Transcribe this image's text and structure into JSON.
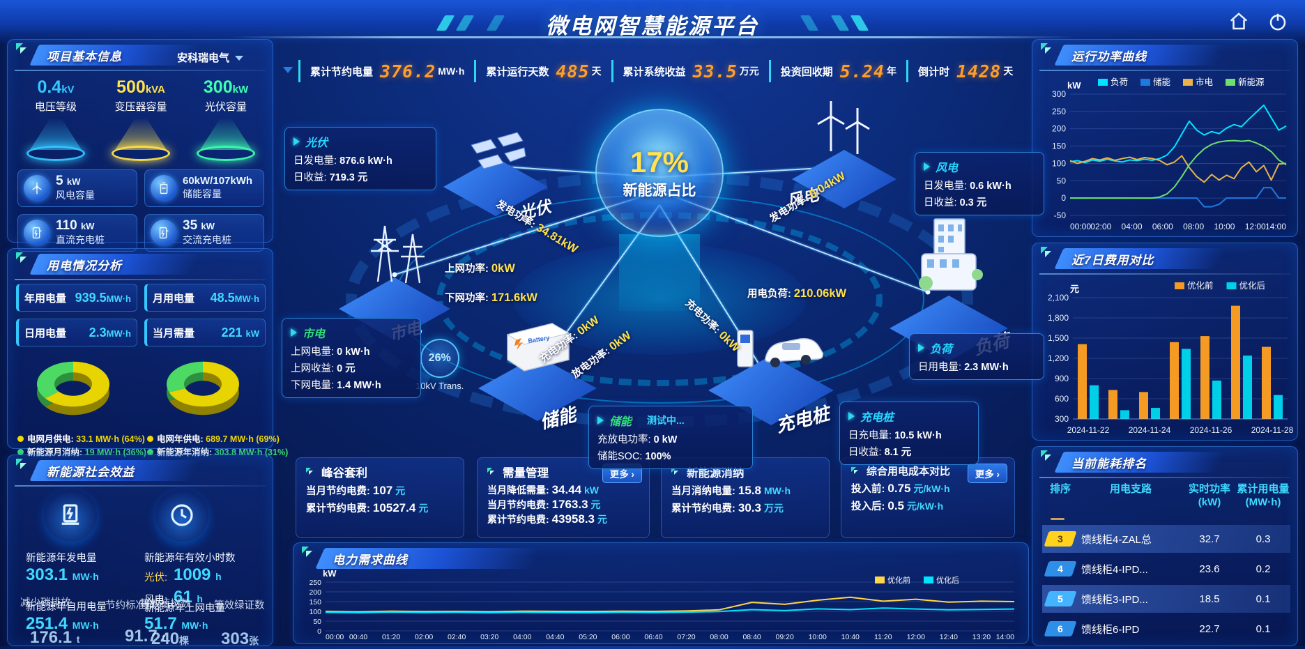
{
  "header": {
    "title": "微电网智慧能源平台"
  },
  "stats_bar": [
    {
      "label": "累计节约电量",
      "value": "376.2",
      "unit": "MW·h"
    },
    {
      "label": "累计运行天数",
      "value": "485",
      "unit": "天"
    },
    {
      "label": "累计系统收益",
      "value": "33.5",
      "unit": "万元"
    },
    {
      "label": "投资回收期",
      "value": "5.24",
      "unit": "年"
    },
    {
      "label": "倒计时",
      "value": "1428",
      "unit": "天"
    }
  ],
  "project_info": {
    "title": "项目基本信息",
    "company": "安科瑞电气",
    "cones": [
      {
        "value": "0.4",
        "unit": "kV",
        "label": "电压等级",
        "color": "#35c8ff"
      },
      {
        "value": "500",
        "unit": "kVA",
        "label": "变压器容量",
        "color": "#ffe24d"
      },
      {
        "value": "300",
        "unit": "kW",
        "label": "光伏容量",
        "color": "#3fffb0"
      }
    ],
    "cards": [
      {
        "value": "5",
        "unit": "kW",
        "label": "风电容量"
      },
      {
        "value": "60kW/107kWh",
        "unit": "",
        "label": "储能容量"
      },
      {
        "value": "110",
        "unit": "kW",
        "label": "直流充电桩"
      },
      {
        "value": "35",
        "unit": "kW",
        "label": "交流充电桩"
      }
    ]
  },
  "power_analysis": {
    "title": "用电情况分析",
    "metrics": [
      {
        "label": "年用电量",
        "value": "939.5",
        "unit": "MW·h"
      },
      {
        "label": "月用电量",
        "value": "48.5",
        "unit": "MW·h"
      },
      {
        "label": "日用电量",
        "value": "2.3",
        "unit": "MW·h"
      },
      {
        "label": "当月需量",
        "value": "221",
        "unit": "kW"
      }
    ],
    "donut_month_legend": [
      {
        "label": "电网月供电:",
        "value": "33.1 MW·h (64%)",
        "color": "#f0d800"
      },
      {
        "label": "新能源月消纳:",
        "value": "19 MW·h (36%)",
        "color": "#3ce06e"
      }
    ],
    "donut_year_legend": [
      {
        "label": "电网年供电:",
        "value": "689.7 MW·h (69%)",
        "color": "#f0d800"
      },
      {
        "label": "新能源年消纳:",
        "value": "303.8 MW·h (31%)",
        "color": "#3ce06e"
      }
    ]
  },
  "social_benefit": {
    "title": "新能源社会效益",
    "gen_label": "新能源年发电量",
    "gen_value": "303.1",
    "gen_unit": "MW·h",
    "hours_label": "新能源年有效小时数",
    "pv_label": "光伏:",
    "pv_value": "1009",
    "pv_unit": "h",
    "wind_label": "风电:",
    "wind_value": "61",
    "wind_unit": "h",
    "self_label": "新能源年自用电量",
    "self_value": "251.4",
    "self_unit": "MW·h",
    "grid_label": "新能源年上网电量",
    "grid_value": "51.7",
    "grid_unit": "MW·h",
    "carbon_label": "减少碳排放",
    "carbon_value": "176.1",
    "carbon_unit": "t",
    "coal_label": "节约标准煤",
    "coal_value": "91.7",
    "coal_unit": "t",
    "trees_label": "等效植树数",
    "trees_value": "240",
    "trees_unit": "棵",
    "cert_label": "等效绿证数",
    "cert_value": "303",
    "cert_unit": "张"
  },
  "center": {
    "hub": {
      "percent": "17%",
      "label": "新能源占比"
    },
    "nodes": {
      "pv": "光伏",
      "wind": "风电",
      "grid": "市电",
      "storage": "储能",
      "charger": "充电桩",
      "load": "负荷"
    },
    "pv_card": {
      "title": "光伏",
      "title_color": "#27d8ff",
      "r1l": "日发电量:",
      "r1v": "876.6 kW·h",
      "r2l": "日收益:",
      "r2v": "719.3 元"
    },
    "wind_card": {
      "title": "风电",
      "title_color": "#27d8ff",
      "r1l": "日发电量:",
      "r1v": "0.6 kW·h",
      "r2l": "日收益:",
      "r2v": "0.3 元"
    },
    "grid_card": {
      "title": "市电",
      "title_color": "#33e07a",
      "r1l": "上网电量:",
      "r1v": "0 kW·h",
      "r2l": "上网收益:",
      "r2v": "0 元",
      "r3l": "下网电量:",
      "r3v": "1.4 MW·h"
    },
    "load_card": {
      "title": "负荷",
      "title_color": "#27d8ff",
      "r1l": "日用电量:",
      "r1v": "2.3 MW·h"
    },
    "storage_card": {
      "title": "储能",
      "title_color": "#33e07a",
      "status": "测试中...",
      "r1l": "充放电功率:",
      "r1v": "0 kW",
      "r2l": "储能SOC:",
      "r2v": "100%"
    },
    "charger_card": {
      "title": "充电桩",
      "title_color": "#27d8ff",
      "r1l": "日充电量:",
      "r1v": "10.5 kW·h",
      "r2l": "日收益:",
      "r2v": "8.1 元"
    },
    "flows": {
      "pv_gen": {
        "label": "发电功率:",
        "value": "34.81kW"
      },
      "to_grid": {
        "label": "上网功率:",
        "value": "0kW"
      },
      "from_grid": {
        "label": "下网功率:",
        "value": "171.6kW"
      },
      "wind_gen": {
        "label": "发电功率:",
        "value": "0.04kW"
      },
      "load_power": {
        "label": "用电负荷:",
        "value": "210.06kW"
      },
      "st_charge": {
        "label": "充电功率:",
        "value": "0kW"
      },
      "st_discharge": {
        "label": "放电功率:",
        "value": "0kW"
      },
      "ev_charge": {
        "label": "充电功率:",
        "value": "0kW"
      }
    },
    "transformer": {
      "percent": "26%",
      "label": "10kV Trans."
    }
  },
  "bottom_cards": [
    {
      "title": "峰谷套利",
      "rows": [
        {
          "l": "当月节约电费:",
          "v": "107",
          "u": "元"
        },
        {
          "l": "累计节约电费:",
          "v": "10527.4",
          "u": "元"
        }
      ]
    },
    {
      "title": "需量管理",
      "more": "更多 ›",
      "rows": [
        {
          "l": "当月降低需量:",
          "v": "34.44",
          "u": "kW"
        },
        {
          "l": "当月节约电费:",
          "v": "1763.3",
          "u": "元"
        },
        {
          "l": "累计节约电费:",
          "v": "43958.3",
          "u": "元"
        }
      ]
    },
    {
      "title": "新能源消纳",
      "rows": [
        {
          "l": "当月消纳电量:",
          "v": "15.8",
          "u": "MW·h"
        },
        {
          "l": "累计节约电费:",
          "v": "30.3",
          "u": "万元"
        }
      ]
    },
    {
      "title": "综合用电成本对比",
      "more": "更多 ›",
      "rows": [
        {
          "l": "投入前:",
          "v": "0.75",
          "u": "元/kW·h"
        },
        {
          "l": "投入后:",
          "v": "0.5",
          "u": "元/kW·h"
        }
      ]
    }
  ],
  "right": {
    "power_curve_title": "运行功率曲线",
    "cost_title": "近7日费用对比",
    "ranking": {
      "title": "当前能耗排名",
      "columns": [
        {
          "label": "排序",
          "sub": ""
        },
        {
          "label": "用电支路",
          "sub": ""
        },
        {
          "label": "实时功率",
          "sub": "(kW)"
        },
        {
          "label": "累计用电量",
          "sub": "(MW·h)"
        }
      ],
      "rows": [
        {
          "rank": "3",
          "branch": "馈线柜4-ZAL总",
          "power": "32.7",
          "energy": "0.3",
          "badge": "#ffd21e",
          "badge_text": "#50400a"
        },
        {
          "rank": "4",
          "branch": "馈线柜4-IPD...",
          "power": "23.6",
          "energy": "0.2",
          "badge": "#2e8fe8",
          "badge_text": "#ffffff"
        },
        {
          "rank": "5",
          "branch": "馈线柜3-IPD...",
          "power": "18.5",
          "energy": "0.1",
          "badge": "#45b4ff",
          "badge_text": "#ffffff"
        },
        {
          "rank": "6",
          "branch": "馈线柜6-IPD",
          "power": "22.7",
          "energy": "0.1",
          "badge": "#2e8fe8",
          "badge_text": "#ffffff"
        }
      ]
    }
  },
  "demand_panel": {
    "title": "电力需求曲线"
  },
  "chart_data": [
    {
      "id": "power-curve",
      "type": "line",
      "title": "运行功率曲线",
      "ylabel": "kW",
      "ylim": [
        -50,
        300
      ],
      "yticks": [
        [
          300,
          "300"
        ],
        [
          250,
          "250"
        ],
        [
          200,
          "200"
        ],
        [
          150,
          "150"
        ],
        [
          100,
          "100"
        ],
        [
          50,
          "50"
        ],
        [
          0,
          "0"
        ],
        [
          -50,
          "-50"
        ]
      ],
      "x_ticks": [
        "00:00",
        "02:00",
        "04:00",
        "06:00",
        "08:00",
        "10:00",
        "12:00",
        "14:00"
      ],
      "legend_x": 86,
      "tick_font": 12,
      "m": {
        "l": 46,
        "r": 8,
        "t": 30,
        "b": 24
      },
      "series": [
        {
          "name": "负荷",
          "color": "#00e5ff",
          "values": [
            105,
            108,
            102,
            110,
            106,
            112,
            107,
            104,
            110,
            108,
            112,
            109,
            114,
            124,
            148,
            185,
            222,
            196,
            182,
            192,
            186,
            202,
            212,
            206,
            228,
            248,
            268,
            232,
            196,
            208
          ]
        },
        {
          "name": "储能",
          "color": "#1f7ae0",
          "values": [
            0,
            0,
            0,
            0,
            0,
            0,
            0,
            0,
            0,
            0,
            0,
            0,
            0,
            0,
            0,
            0,
            0,
            0,
            -25,
            -25,
            -18,
            0,
            0,
            0,
            0,
            0,
            30,
            30,
            0,
            0
          ]
        },
        {
          "name": "市电",
          "color": "#e8b34b",
          "values": [
            108,
            100,
            106,
            114,
            110,
            116,
            109,
            114,
            118,
            111,
            117,
            114,
            109,
            96,
            104,
            122,
            88,
            62,
            46,
            68,
            52,
            66,
            56,
            88,
            104,
            76,
            94,
            52,
            98,
            100
          ]
        },
        {
          "name": "新能源",
          "color": "#6ee06e",
          "values": [
            0,
            0,
            0,
            0,
            0,
            0,
            0,
            0,
            0,
            0,
            0,
            0,
            3,
            12,
            32,
            62,
            96,
            122,
            142,
            155,
            162,
            165,
            166,
            164,
            166,
            159,
            149,
            134,
            110,
            96
          ]
        }
      ]
    },
    {
      "id": "cost-compare",
      "type": "bar",
      "title": "近7日费用对比",
      "ylabel": "元",
      "ylim": [
        300,
        2100
      ],
      "yticks": [
        [
          2100,
          "2,100"
        ],
        [
          1800,
          "1,800"
        ],
        [
          1500,
          "1,500"
        ],
        [
          1200,
          "1,200"
        ],
        [
          900,
          "900"
        ],
        [
          600,
          "600"
        ],
        [
          300,
          "300"
        ]
      ],
      "categories": [
        "2024-11-22",
        "2024-11-23",
        "2024-11-24",
        "2024-11-25",
        "2024-11-26",
        "2024-11-27",
        "2024-11-28"
      ],
      "x_ticks": [
        {
          "i": 0,
          "label": "2024-11-22"
        },
        {
          "i": 2,
          "label": "2024-11-24"
        },
        {
          "i": 4,
          "label": "2024-11-26"
        },
        {
          "i": 6,
          "label": "2024-11-28"
        }
      ],
      "legend_x": 196,
      "tick_font": 12,
      "m": {
        "l": 50,
        "r": 6,
        "t": 30,
        "b": 24
      },
      "series": [
        {
          "name": "优化前",
          "color": "#f59a23",
          "values": [
            1410,
            730,
            700,
            1440,
            1530,
            1980,
            1370
          ]
        },
        {
          "name": "优化后",
          "color": "#00cfe8",
          "values": [
            800,
            430,
            465,
            1340,
            870,
            1240,
            655
          ]
        }
      ]
    },
    {
      "id": "demand-curve",
      "type": "line",
      "title": "电力需求曲线",
      "ylabel": "kW",
      "ylim": [
        0,
        250
      ],
      "yticks": [
        [
          250,
          "250"
        ],
        [
          200,
          "200"
        ],
        [
          150,
          "150"
        ],
        [
          100,
          "100"
        ],
        [
          50,
          "50"
        ],
        [
          0,
          "0"
        ]
      ],
      "x_ticks": [
        "00:00",
        "00:40",
        "01:20",
        "02:00",
        "02:40",
        "03:20",
        "04:00",
        "04:40",
        "05:20",
        "06:00",
        "06:40",
        "07:20",
        "08:00",
        "08:40",
        "09:20",
        "10:00",
        "10:40",
        "11:20",
        "12:00",
        "12:40",
        "13:20",
        "14:00"
      ],
      "legend_x": 830,
      "tick_font": 10.5,
      "m": {
        "l": 42,
        "r": 14,
        "t": 16,
        "b": 16
      },
      "series": [
        {
          "name": "优化前",
          "color": "#ffd54a",
          "values": [
            100,
            97,
            101,
            99,
            100,
            98,
            101,
            100,
            99,
            101,
            100,
            102,
            108,
            146,
            136,
            157,
            172,
            152,
            162,
            147,
            152,
            150
          ]
        },
        {
          "name": "优化后",
          "color": "#00e5ff",
          "values": [
            95,
            93,
            96,
            94,
            95,
            93,
            95,
            94,
            93,
            95,
            94,
            96,
            99,
            109,
            104,
            113,
            109,
            117,
            112,
            108,
            110,
            112
          ]
        }
      ]
    },
    {
      "id": "donut-month",
      "type": "pie",
      "slices": [
        {
          "label": "电网月供电",
          "value": 64,
          "color": "#e8d400",
          "shade": "#8f8200"
        },
        {
          "label": "新能源月消纳",
          "value": 36,
          "color": "#4cd964",
          "shade": "#2e8f3e"
        }
      ]
    },
    {
      "id": "donut-year",
      "type": "pie",
      "slices": [
        {
          "label": "电网年供电",
          "value": 69,
          "color": "#e8d400",
          "shade": "#8f8200"
        },
        {
          "label": "新能源年消纳",
          "value": 31,
          "color": "#4cd964",
          "shade": "#2e8f3e"
        }
      ]
    }
  ]
}
